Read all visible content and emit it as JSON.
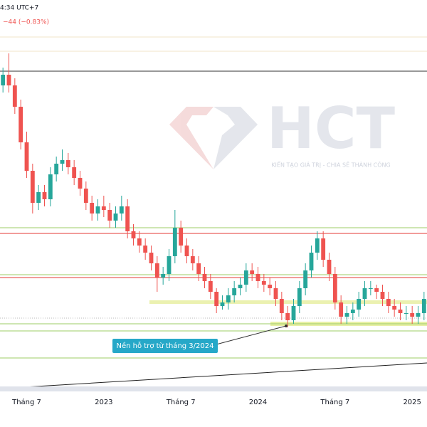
{
  "chart_data": {
    "type": "candlestick",
    "header_time": "4:34 UTC+7",
    "header_change": "−44 (−0.83%)",
    "watermark": "HCT",
    "watermark_tagline": "KIẾN TẠO GIÁ TRỊ - CHIA SẺ THÀNH CÔNG",
    "annotation": "Nền hỗ trợ từ tháng 3/2024",
    "categories": [
      null,
      null,
      null,
      null,
      "Tháng 7",
      null,
      null,
      null,
      null,
      null,
      null,
      null,
      null,
      null,
      null,
      null,
      null,
      "2023",
      null,
      null,
      null,
      null,
      null,
      null,
      null,
      null,
      null,
      null,
      null,
      null,
      "Tháng 7",
      null,
      null,
      null,
      null,
      null,
      null,
      null,
      null,
      null,
      null,
      null,
      null,
      "2024",
      null,
      null,
      null,
      null,
      null,
      null,
      null,
      null,
      null,
      null,
      null,
      null,
      "Tháng 7",
      null,
      null,
      null,
      null,
      null,
      null,
      null,
      null,
      null,
      null,
      null,
      null,
      "2025",
      null,
      null
    ],
    "open": [
      88,
      91,
      88,
      82,
      72,
      64,
      55,
      58,
      56,
      63,
      66,
      67,
      65,
      62,
      59,
      55,
      52,
      54,
      53,
      50,
      52,
      54,
      47,
      45,
      43,
      41,
      38,
      34,
      35,
      40,
      48,
      43,
      40,
      38,
      35,
      33,
      30,
      26,
      27,
      29,
      31,
      32,
      36,
      35,
      33,
      32,
      31,
      28,
      24,
      22,
      26,
      31,
      36,
      41,
      45,
      39,
      35,
      27,
      23,
      24,
      25,
      28,
      31,
      31,
      30,
      28,
      26,
      25,
      24,
      24,
      23,
      24
    ],
    "high": [
      93,
      97,
      90,
      84,
      75,
      66,
      60,
      60,
      65,
      68,
      70,
      69,
      67,
      64,
      61,
      57,
      56,
      57,
      55,
      54,
      57,
      56,
      49,
      47,
      45,
      43,
      40,
      37,
      42,
      53,
      50,
      45,
      42,
      40,
      37,
      35,
      31,
      29,
      31,
      33,
      34,
      38,
      38,
      37,
      35,
      34,
      33,
      30,
      26,
      28,
      33,
      38,
      43,
      47,
      47,
      41,
      37,
      29,
      26,
      27,
      30,
      33,
      33,
      32,
      32,
      30,
      28,
      27,
      26,
      26,
      26,
      30
    ],
    "low": [
      86,
      86,
      80,
      70,
      62,
      52,
      53,
      54,
      54,
      61,
      64,
      63,
      60,
      57,
      53,
      50,
      50,
      51,
      48,
      48,
      50,
      45,
      43,
      41,
      39,
      36,
      30,
      32,
      33,
      38,
      41,
      38,
      36,
      33,
      31,
      28,
      24,
      25,
      25,
      27,
      29,
      30,
      33,
      31,
      30,
      29,
      26,
      22,
      20,
      21,
      24,
      29,
      34,
      39,
      37,
      33,
      25,
      21,
      21,
      22,
      23,
      26,
      29,
      28,
      26,
      24,
      23,
      22,
      22,
      21,
      21,
      22
    ],
    "close": [
      91,
      88,
      82,
      72,
      64,
      55,
      58,
      56,
      63,
      66,
      67,
      65,
      62,
      59,
      55,
      52,
      54,
      53,
      50,
      52,
      54,
      47,
      45,
      43,
      41,
      38,
      34,
      35,
      40,
      48,
      43,
      40,
      38,
      35,
      33,
      30,
      26,
      27,
      29,
      31,
      32,
      36,
      35,
      33,
      32,
      31,
      28,
      24,
      22,
      26,
      31,
      36,
      41,
      45,
      39,
      35,
      27,
      23,
      24,
      25,
      28,
      31,
      31,
      30,
      28,
      26,
      25,
      24,
      24,
      23,
      24,
      28
    ],
    "up_color": "#26a69a",
    "down_color": "#ef5350",
    "ylim": [
      0,
      112
    ]
  }
}
